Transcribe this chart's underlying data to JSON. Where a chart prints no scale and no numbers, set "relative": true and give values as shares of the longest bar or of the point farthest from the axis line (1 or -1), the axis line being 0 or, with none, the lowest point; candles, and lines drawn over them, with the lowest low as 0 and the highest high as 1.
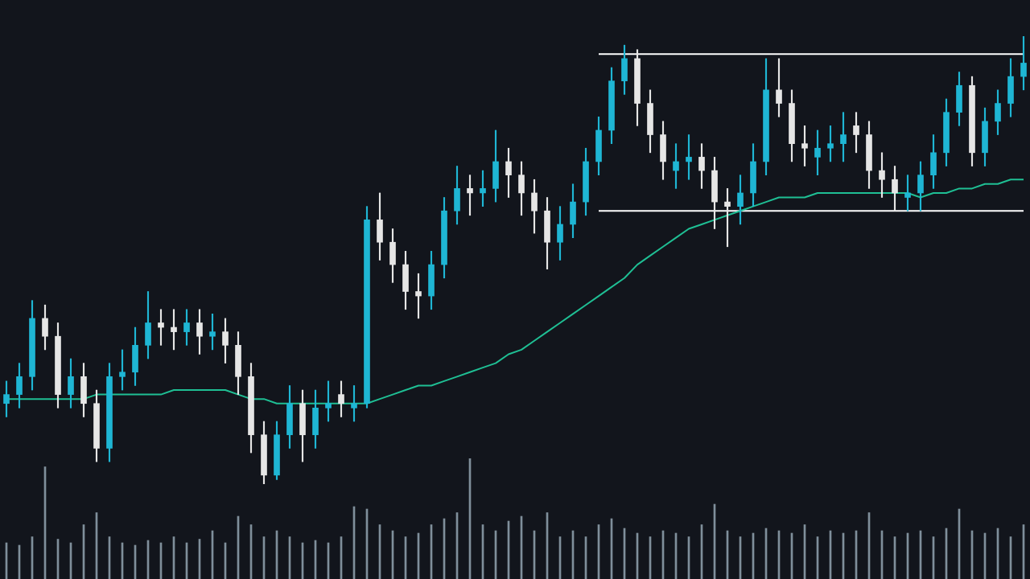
{
  "chart_data": [
    {
      "type": "candlestick",
      "relative": true,
      "marker": "none",
      "categories": [
        null,
        null,
        null,
        null,
        null,
        null,
        null,
        null,
        null,
        null,
        null,
        null,
        null,
        null,
        null,
        null,
        null,
        null,
        null,
        null,
        null,
        null,
        null,
        null,
        null,
        null,
        null,
        null,
        null,
        null,
        null,
        null,
        null,
        null,
        null,
        null,
        null,
        null,
        null,
        null,
        null,
        null,
        null,
        null,
        null,
        null,
        null,
        null,
        null,
        null,
        null,
        null,
        null,
        null,
        null,
        null,
        null,
        null,
        null,
        null,
        null,
        null,
        null,
        null,
        null,
        null,
        null,
        null,
        null,
        null,
        null,
        null,
        null,
        null,
        null,
        null,
        null,
        null,
        null,
        null
      ],
      "ohlc": [
        [
          0.18,
          0.23,
          0.15,
          0.2
        ],
        [
          0.2,
          0.27,
          0.17,
          0.24
        ],
        [
          0.24,
          0.41,
          0.21,
          0.37
        ],
        [
          0.37,
          0.4,
          0.3,
          0.33
        ],
        [
          0.33,
          0.36,
          0.17,
          0.2
        ],
        [
          0.2,
          0.28,
          0.17,
          0.24
        ],
        [
          0.24,
          0.27,
          0.15,
          0.18
        ],
        [
          0.18,
          0.21,
          0.05,
          0.08
        ],
        [
          0.08,
          0.27,
          0.05,
          0.24
        ],
        [
          0.24,
          0.3,
          0.21,
          0.25
        ],
        [
          0.25,
          0.35,
          0.22,
          0.31
        ],
        [
          0.31,
          0.43,
          0.28,
          0.36
        ],
        [
          0.36,
          0.39,
          0.31,
          0.35
        ],
        [
          0.35,
          0.39,
          0.3,
          0.34
        ],
        [
          0.34,
          0.39,
          0.31,
          0.36
        ],
        [
          0.36,
          0.39,
          0.29,
          0.33
        ],
        [
          0.33,
          0.38,
          0.3,
          0.34
        ],
        [
          0.34,
          0.37,
          0.27,
          0.31
        ],
        [
          0.31,
          0.34,
          0.2,
          0.24
        ],
        [
          0.24,
          0.27,
          0.07,
          0.11
        ],
        [
          0.11,
          0.14,
          0.0,
          0.02
        ],
        [
          0.02,
          0.14,
          0.01,
          0.11
        ],
        [
          0.11,
          0.22,
          0.08,
          0.18
        ],
        [
          0.18,
          0.21,
          0.05,
          0.11
        ],
        [
          0.11,
          0.21,
          0.08,
          0.17
        ],
        [
          0.17,
          0.23,
          0.14,
          0.18
        ],
        [
          0.2,
          0.23,
          0.15,
          0.18
        ],
        [
          0.17,
          0.22,
          0.14,
          0.18
        ],
        [
          0.18,
          0.62,
          0.17,
          0.59
        ],
        [
          0.59,
          0.65,
          0.5,
          0.54
        ],
        [
          0.54,
          0.57,
          0.45,
          0.49
        ],
        [
          0.49,
          0.52,
          0.39,
          0.43
        ],
        [
          0.43,
          0.47,
          0.37,
          0.42
        ],
        [
          0.42,
          0.52,
          0.39,
          0.49
        ],
        [
          0.49,
          0.64,
          0.46,
          0.61
        ],
        [
          0.61,
          0.71,
          0.58,
          0.66
        ],
        [
          0.66,
          0.69,
          0.6,
          0.65
        ],
        [
          0.65,
          0.7,
          0.62,
          0.66
        ],
        [
          0.66,
          0.79,
          0.63,
          0.72
        ],
        [
          0.72,
          0.75,
          0.64,
          0.69
        ],
        [
          0.69,
          0.72,
          0.6,
          0.65
        ],
        [
          0.65,
          0.68,
          0.56,
          0.61
        ],
        [
          0.61,
          0.64,
          0.48,
          0.54
        ],
        [
          0.54,
          0.62,
          0.5,
          0.58
        ],
        [
          0.58,
          0.67,
          0.55,
          0.63
        ],
        [
          0.63,
          0.75,
          0.6,
          0.72
        ],
        [
          0.72,
          0.82,
          0.69,
          0.79
        ],
        [
          0.79,
          0.93,
          0.76,
          0.9
        ],
        [
          0.9,
          0.98,
          0.87,
          0.95
        ],
        [
          0.95,
          0.97,
          0.8,
          0.85
        ],
        [
          0.85,
          0.88,
          0.74,
          0.78
        ],
        [
          0.78,
          0.81,
          0.68,
          0.72
        ],
        [
          0.7,
          0.76,
          0.66,
          0.72
        ],
        [
          0.72,
          0.78,
          0.68,
          0.73
        ],
        [
          0.73,
          0.76,
          0.66,
          0.7
        ],
        [
          0.7,
          0.73,
          0.57,
          0.63
        ],
        [
          0.63,
          0.66,
          0.53,
          0.62
        ],
        [
          0.62,
          0.69,
          0.58,
          0.65
        ],
        [
          0.65,
          0.76,
          0.62,
          0.72
        ],
        [
          0.72,
          0.95,
          0.69,
          0.88
        ],
        [
          0.88,
          0.95,
          0.82,
          0.85
        ],
        [
          0.85,
          0.88,
          0.72,
          0.76
        ],
        [
          0.76,
          0.8,
          0.71,
          0.75
        ],
        [
          0.73,
          0.79,
          0.69,
          0.75
        ],
        [
          0.75,
          0.8,
          0.72,
          0.76
        ],
        [
          0.76,
          0.83,
          0.72,
          0.78
        ],
        [
          0.8,
          0.83,
          0.74,
          0.78
        ],
        [
          0.78,
          0.81,
          0.66,
          0.7
        ],
        [
          0.7,
          0.74,
          0.64,
          0.68
        ],
        [
          0.68,
          0.71,
          0.61,
          0.65
        ],
        [
          0.64,
          0.69,
          0.61,
          0.65
        ],
        [
          0.65,
          0.72,
          0.61,
          0.69
        ],
        [
          0.69,
          0.78,
          0.66,
          0.74
        ],
        [
          0.74,
          0.86,
          0.71,
          0.83
        ],
        [
          0.83,
          0.92,
          0.8,
          0.89
        ],
        [
          0.89,
          0.91,
          0.71,
          0.74
        ],
        [
          0.74,
          0.84,
          0.71,
          0.81
        ],
        [
          0.81,
          0.88,
          0.78,
          0.85
        ],
        [
          0.85,
          0.95,
          0.82,
          0.91
        ],
        [
          0.91,
          1.0,
          0.88,
          0.94
        ]
      ],
      "colors": [
        "#1fb6d4",
        "#1fb6d4",
        "#1fb6d4",
        "#e6e6e6",
        "#e6e6e6",
        "#1fb6d4",
        "#e6e6e6",
        "#e6e6e6",
        "#1fb6d4",
        "#1fb6d4",
        "#1fb6d4",
        "#1fb6d4",
        "#e6e6e6",
        "#e6e6e6",
        "#1fb6d4",
        "#e6e6e6",
        "#1fb6d4",
        "#e6e6e6",
        "#e6e6e6",
        "#e6e6e6",
        "#e6e6e6",
        "#1fb6d4",
        "#1fb6d4",
        "#e6e6e6",
        "#1fb6d4",
        "#1fb6d4",
        "#e6e6e6",
        "#1fb6d4",
        "#1fb6d4",
        "#e6e6e6",
        "#e6e6e6",
        "#e6e6e6",
        "#e6e6e6",
        "#1fb6d4",
        "#1fb6d4",
        "#1fb6d4",
        "#e6e6e6",
        "#1fb6d4",
        "#1fb6d4",
        "#e6e6e6",
        "#e6e6e6",
        "#e6e6e6",
        "#e6e6e6",
        "#1fb6d4",
        "#1fb6d4",
        "#1fb6d4",
        "#1fb6d4",
        "#1fb6d4",
        "#1fb6d4",
        "#e6e6e6",
        "#e6e6e6",
        "#e6e6e6",
        "#1fb6d4",
        "#1fb6d4",
        "#e6e6e6",
        "#e6e6e6",
        "#e6e6e6",
        "#1fb6d4",
        "#1fb6d4",
        "#1fb6d4",
        "#e6e6e6",
        "#e6e6e6",
        "#e6e6e6",
        "#1fb6d4",
        "#1fb6d4",
        "#1fb6d4",
        "#e6e6e6",
        "#e6e6e6",
        "#e6e6e6",
        "#e6e6e6",
        "#1fb6d4",
        "#1fb6d4",
        "#1fb6d4",
        "#1fb6d4",
        "#1fb6d4",
        "#e6e6e6",
        "#1fb6d4",
        "#1fb6d4",
        "#1fb6d4",
        "#1fb6d4"
      ],
      "series": [
        {
          "type": "line",
          "color": "#1fbf94",
          "values": [
            0.19,
            0.19,
            0.19,
            0.19,
            0.19,
            0.19,
            0.19,
            0.2,
            0.2,
            0.2,
            0.2,
            0.2,
            0.2,
            0.21,
            0.21,
            0.21,
            0.21,
            0.21,
            0.2,
            0.19,
            0.19,
            0.18,
            0.18,
            0.18,
            0.18,
            0.18,
            0.18,
            0.18,
            0.18,
            0.19,
            0.2,
            0.21,
            0.22,
            0.22,
            0.23,
            0.24,
            0.25,
            0.26,
            0.27,
            0.29,
            0.3,
            0.32,
            0.34,
            0.36,
            0.38,
            0.4,
            0.42,
            0.44,
            0.46,
            0.49,
            0.51,
            0.53,
            0.55,
            0.57,
            0.58,
            0.59,
            0.6,
            0.61,
            0.62,
            0.63,
            0.64,
            0.64,
            0.64,
            0.65,
            0.65,
            0.65,
            0.65,
            0.65,
            0.65,
            0.65,
            0.65,
            0.64,
            0.65,
            0.65,
            0.66,
            0.66,
            0.67,
            0.67,
            0.68,
            0.68
          ]
        },
        {
          "type": "line",
          "color": "#ffffff",
          "values": [
            null,
            null,
            null,
            null,
            null,
            null,
            null,
            null,
            null,
            null,
            null,
            null,
            null,
            null,
            null,
            null,
            null,
            null,
            null,
            null,
            null,
            null,
            null,
            null,
            null,
            null,
            null,
            null,
            null,
            null,
            null,
            null,
            null,
            null,
            null,
            null,
            null,
            null,
            null,
            null,
            null,
            null,
            null,
            null,
            null,
            null,
            0.96,
            0.96,
            0.96,
            0.96,
            0.96,
            0.96,
            0.96,
            0.96,
            0.96,
            0.96,
            0.96,
            0.96,
            0.96,
            0.96,
            0.96,
            0.96,
            0.96,
            0.96,
            0.96,
            0.96,
            0.96,
            0.96,
            0.96,
            0.96,
            0.96,
            0.96,
            0.96,
            0.96,
            0.96,
            0.96,
            0.96,
            0.96,
            0.96,
            0.96
          ]
        },
        {
          "type": "line",
          "color": "#ffffff",
          "values": [
            null,
            null,
            null,
            null,
            null,
            null,
            null,
            null,
            null,
            null,
            null,
            null,
            null,
            null,
            null,
            null,
            null,
            null,
            null,
            null,
            null,
            null,
            null,
            null,
            null,
            null,
            null,
            null,
            null,
            null,
            null,
            null,
            null,
            null,
            null,
            null,
            null,
            null,
            null,
            null,
            null,
            null,
            null,
            null,
            null,
            null,
            0.61,
            0.61,
            0.61,
            0.61,
            0.61,
            0.61,
            0.61,
            0.61,
            0.61,
            0.61,
            0.61,
            0.61,
            0.61,
            0.61,
            0.61,
            0.61,
            0.61,
            0.61,
            0.61,
            0.61,
            0.61,
            0.61,
            0.61,
            0.61,
            0.61,
            0.61,
            0.61,
            0.61,
            0.61,
            0.61,
            0.61,
            0.61,
            0.61,
            0.61
          ]
        }
      ]
    },
    {
      "type": "bar",
      "relative": true,
      "color": "#7f8f9b",
      "categories": [
        null,
        null,
        null,
        null,
        null,
        null,
        null,
        null,
        null,
        null,
        null,
        null,
        null,
        null,
        null,
        null,
        null,
        null,
        null,
        null,
        null,
        null,
        null,
        null,
        null,
        null,
        null,
        null,
        null,
        null,
        null,
        null,
        null,
        null,
        null,
        null,
        null,
        null,
        null,
        null,
        null,
        null,
        null,
        null,
        null,
        null,
        null,
        null,
        null,
        null,
        null,
        null,
        null,
        null,
        null,
        null,
        null,
        null,
        null,
        null,
        null,
        null,
        null,
        null,
        null,
        null,
        null,
        null,
        null,
        null,
        null,
        null,
        null,
        null,
        null,
        null,
        null,
        null,
        null,
        null
      ],
      "values": [
        0.3,
        0.28,
        0.35,
        0.93,
        0.33,
        0.3,
        0.45,
        0.55,
        0.35,
        0.3,
        0.28,
        0.32,
        0.3,
        0.35,
        0.3,
        0.33,
        0.4,
        0.3,
        0.52,
        0.45,
        0.35,
        0.4,
        0.35,
        0.3,
        0.32,
        0.3,
        0.35,
        0.6,
        0.58,
        0.45,
        0.4,
        0.35,
        0.38,
        0.45,
        0.5,
        0.55,
        1.0,
        0.45,
        0.4,
        0.48,
        0.52,
        0.4,
        0.55,
        0.35,
        0.4,
        0.35,
        0.45,
        0.5,
        0.42,
        0.38,
        0.35,
        0.4,
        0.38,
        0.35,
        0.45,
        0.62,
        0.4,
        0.35,
        0.38,
        0.42,
        0.4,
        0.38,
        0.45,
        0.35,
        0.4,
        0.38,
        0.4,
        0.55,
        0.4,
        0.35,
        0.38,
        0.4,
        0.35,
        0.42,
        0.58,
        0.4,
        0.38,
        0.42,
        0.35,
        0.45
      ]
    }
  ]
}
